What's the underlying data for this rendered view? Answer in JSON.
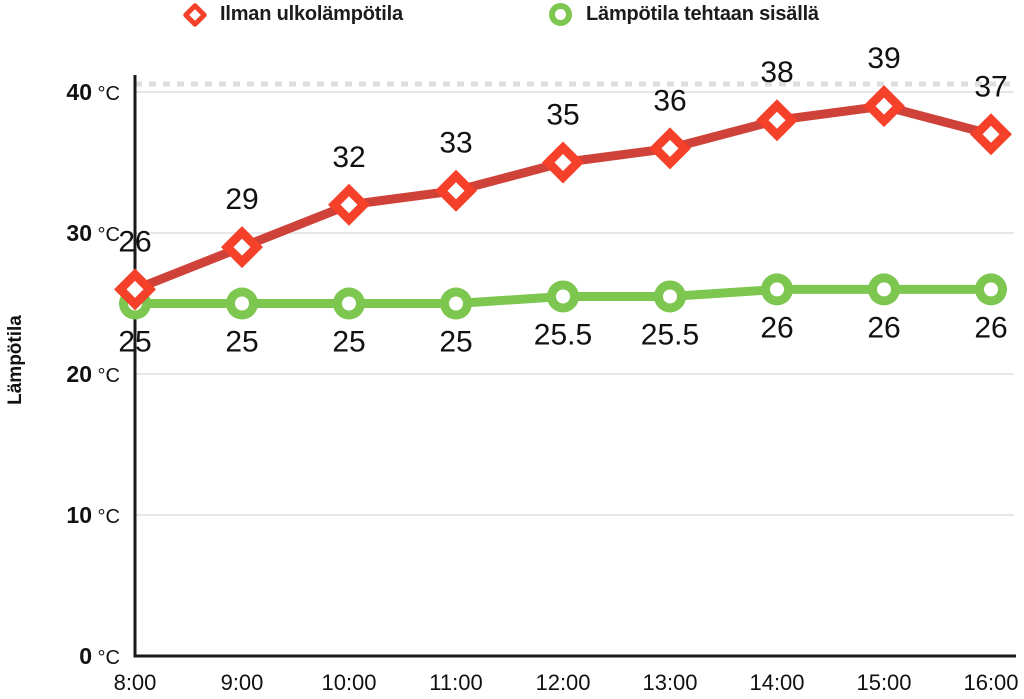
{
  "legend": {
    "items": [
      {
        "label": "Ilman ulkolämpötila",
        "marker": "diamond",
        "color": "#f5402a"
      },
      {
        "label": "Lämpötila tehtaan sisällä",
        "marker": "circle",
        "color": "#7dc750"
      }
    ]
  },
  "axis": {
    "yticks": [
      0,
      10,
      20,
      30,
      40
    ],
    "unit": "°C"
  },
  "chart_data": {
    "type": "line",
    "categories": [
      "8:00",
      "9:00",
      "10:00",
      "11:00",
      "12:00",
      "13:00",
      "14:00",
      "15:00",
      "16:00"
    ],
    "series": [
      {
        "name": "Ilman ulkolämpötila",
        "values": [
          26,
          29,
          32,
          33,
          35,
          36,
          38,
          39,
          37
        ],
        "marker": "diamond",
        "color_line": "#cf423a",
        "color_marker": "#f5402a",
        "label_position": "above"
      },
      {
        "name": "Lämpötila tehtaan sisällä",
        "values": [
          25,
          25,
          25,
          25,
          25.5,
          25.5,
          26,
          26,
          26
        ],
        "marker": "circle",
        "color_line": "#7dc750",
        "color_marker": "#7dc750",
        "label_position": "below"
      }
    ],
    "xlabel": "",
    "ylabel": "Lämpötila",
    "ylim": [
      0,
      40.6
    ],
    "grid": true,
    "legend_position": "top"
  }
}
